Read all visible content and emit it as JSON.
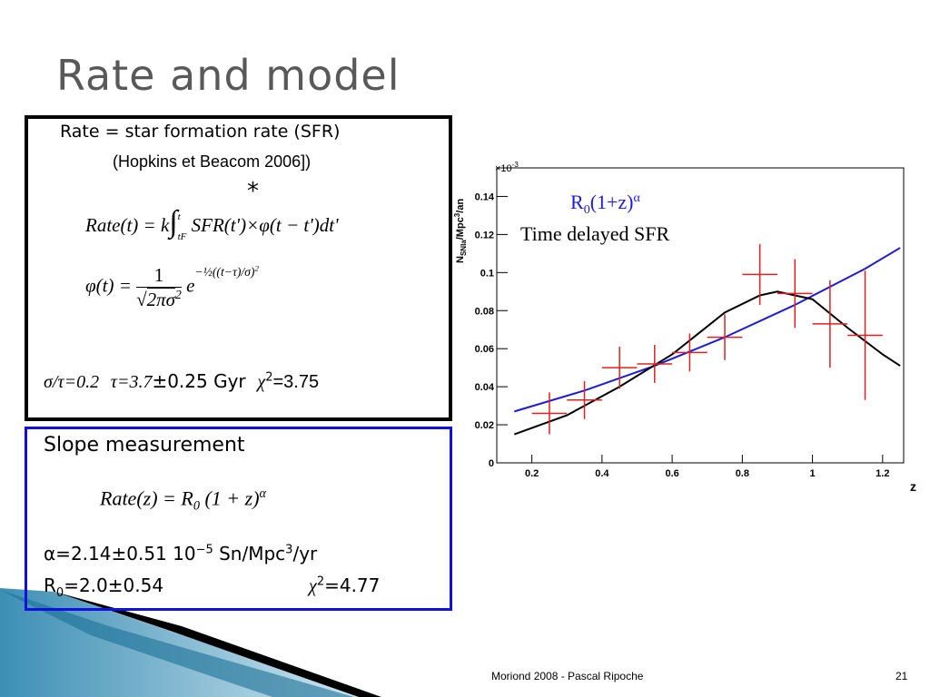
{
  "title": "Rate and model",
  "model_box": {
    "rate_definition": "Rate = star formation rate  (SFR)",
    "reference": "(Hopkins et Beacom 2006])",
    "operator": "*",
    "rate_formula": {
      "lhs": "Rate(t) = k",
      "integral": "∫",
      "upper": "t",
      "lower": "tF",
      "body": "SFR(t')×φ(t − t')dt'"
    },
    "phi_formula": {
      "lhs": "φ(t) =",
      "numerator": "1",
      "root": "√",
      "denominator": "2πσ",
      "denominator_power": "2",
      "base": "e",
      "exponent": "−½((t−τ)/σ)",
      "exponent_power": "2"
    },
    "params": {
      "ratio": "σ/τ=0.2",
      "tau": "τ=3.7",
      "tau_error": "±0.25 Gyr",
      "chi": "χ",
      "chi_power": "2",
      "chi_value": "=3.75"
    }
  },
  "slope_box": {
    "heading": "Slope measurement",
    "formula": {
      "lhs": "Rate(z) = R",
      "sub": "0",
      "body": "(1 + z)",
      "power": "α"
    },
    "alpha": {
      "text": "α=2.14±0.51 10",
      "power": "−5",
      "unit": " Sn/Mpc",
      "unit_power": "3",
      "unit_end": "/yr"
    },
    "r0": {
      "symbol": "R",
      "sub": "0",
      "value": "=2.0±0.54",
      "chi": "χ",
      "chi_power": "2",
      "chi_value": "=4.77"
    }
  },
  "chart_data": {
    "type": "scatter",
    "x_label": "z",
    "y_label": {
      "n": "N",
      "sub": "SNIa",
      "unit": "/Mpc",
      "unit_power": "3",
      "unit_end": "/an"
    },
    "y_multiplier": {
      "base": "×10",
      "exponent": "-3"
    },
    "xlim": [
      0.1,
      1.26
    ],
    "ylim": [
      0,
      0.155
    ],
    "xticks": [
      0.2,
      0.4,
      0.6,
      0.8,
      1,
      1.2
    ],
    "yticks": [
      0,
      0.02,
      0.04,
      0.06,
      0.08,
      0.1,
      0.12,
      0.14
    ],
    "series": [
      {
        "type": "line",
        "color": "#1c1cd8",
        "name_parts": [
          "R",
          "0",
          "(1+z)",
          "α"
        ],
        "x": [
          0.15,
          0.35,
          0.55,
          0.75,
          0.95,
          1.15,
          1.25
        ],
        "values": [
          0.027,
          0.038,
          0.051,
          0.066,
          0.083,
          0.102,
          0.113
        ]
      },
      {
        "type": "line",
        "color": "#000000",
        "name": "Time delayed SFR",
        "x": [
          0.15,
          0.3,
          0.45,
          0.6,
          0.75,
          0.85,
          0.9,
          1.0,
          1.1,
          1.2,
          1.25
        ],
        "values": [
          0.015,
          0.025,
          0.04,
          0.057,
          0.079,
          0.088,
          0.09,
          0.086,
          0.071,
          0.057,
          0.051
        ]
      },
      {
        "type": "errorbar",
        "color": "#e02020",
        "x": [
          0.25,
          0.35,
          0.45,
          0.55,
          0.65,
          0.75,
          0.85,
          0.95,
          1.05,
          1.15
        ],
        "xerr": [
          0.05,
          0.05,
          0.05,
          0.05,
          0.05,
          0.05,
          0.05,
          0.05,
          0.05,
          0.05
        ],
        "values": [
          0.026,
          0.033,
          0.05,
          0.052,
          0.058,
          0.066,
          0.099,
          0.089,
          0.073,
          0.067
        ],
        "yerr": [
          0.011,
          0.01,
          0.011,
          0.01,
          0.01,
          0.012,
          0.016,
          0.018,
          0.023,
          0.034
        ]
      }
    ]
  },
  "footer": {
    "credit": "Moriond 2008 -  Pascal Ripoche",
    "page": "21"
  }
}
